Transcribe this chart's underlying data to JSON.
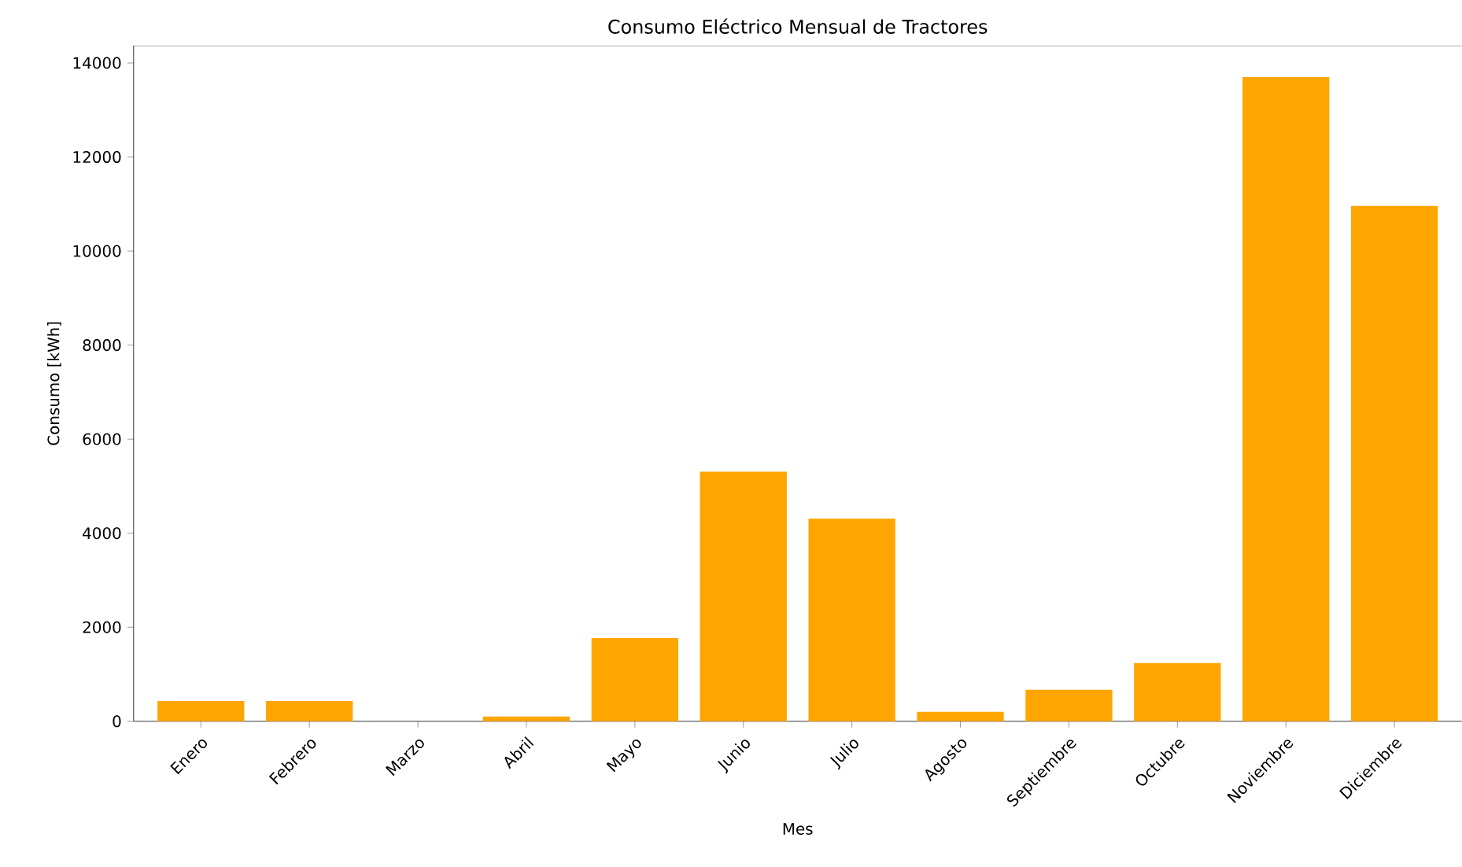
{
  "chart_data": {
    "type": "bar",
    "title": "Consumo Eléctrico Mensual de Tractores",
    "xlabel": "Mes",
    "ylabel": "Consumo [kWh]",
    "categories": [
      "Enero",
      "Febrero",
      "Marzo",
      "Abril",
      "Mayo",
      "Junio",
      "Julio",
      "Agosto",
      "Septiembre",
      "Octubre",
      "Noviembre",
      "Diciembre"
    ],
    "values": [
      430,
      430,
      0,
      100,
      1770,
      5310,
      4310,
      200,
      670,
      1240,
      13700,
      10960
    ],
    "color": "#ffa500",
    "ylim": [
      0,
      14370
    ],
    "yticks": [
      0,
      2000,
      4000,
      6000,
      8000,
      10000,
      12000,
      14000
    ]
  }
}
